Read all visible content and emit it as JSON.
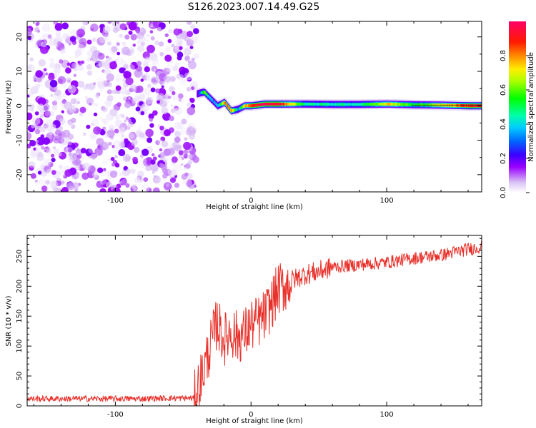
{
  "title": "S126.2023.007.14.49.G25",
  "chart_data": [
    {
      "type": "heatmap",
      "xlabel": "Height of straight line (km)",
      "ylabel": "Frequency (Hz)",
      "xlim": [
        -165,
        170
      ],
      "ylim": [
        -25,
        24.5
      ],
      "xticks": [
        -100,
        0,
        100
      ],
      "yticks": [
        -20,
        -10,
        0,
        10,
        20
      ],
      "colorbar": {
        "label": "Normalized spectral amplitude",
        "range": [
          0,
          1
        ],
        "ticks": [
          0.0,
          0.2,
          0.4,
          0.6,
          0.8
        ]
      },
      "noise_region": {
        "x": [
          -165,
          -40
        ],
        "amplitude_range": [
          0.02,
          0.18
        ]
      },
      "ridge": {
        "x": [
          -40,
          -35,
          -30,
          -25,
          -20,
          -15,
          -10,
          -5,
          0,
          10,
          20,
          40,
          60,
          80,
          100,
          120,
          140,
          160,
          170
        ],
        "freq_hz": [
          3.5,
          4,
          2,
          0,
          1,
          -1.5,
          -1,
          0,
          0,
          0.5,
          0.5,
          0.5,
          0.4,
          0.4,
          0.5,
          0.3,
          0.2,
          0,
          0
        ],
        "peak_amplitude": [
          0.1,
          0.6,
          0.35,
          0.35,
          0.8,
          0.8,
          0.35,
          0.7,
          0.9,
          0.95,
          0.95,
          0.45,
          0.45,
          0.45,
          0.75,
          0.5,
          0.7,
          0.9,
          0.9
        ]
      }
    },
    {
      "type": "line",
      "xlabel": "Height of straight line (km)",
      "ylabel": "SNR (10 * v/v)",
      "xlim": [
        -165,
        170
      ],
      "ylim": [
        0,
        285
      ],
      "xticks": [
        -100,
        0,
        100
      ],
      "yticks": [
        0,
        50,
        100,
        150,
        200,
        250
      ],
      "color": "#e8302a",
      "series": [
        {
          "x": [
            -165,
            -140,
            -110,
            -80,
            -60,
            -42,
            -35,
            -30,
            -25,
            -20,
            -15,
            -10,
            -5,
            0,
            5,
            10,
            15,
            20,
            25,
            30,
            40,
            50,
            60,
            80,
            100,
            120,
            140,
            160,
            170
          ],
          "y": [
            12,
            12,
            12,
            12,
            13,
            13,
            60,
            100,
            140,
            110,
            125,
            115,
            120,
            135,
            140,
            150,
            170,
            195,
            200,
            210,
            220,
            225,
            232,
            236,
            240,
            247,
            252,
            262,
            266
          ]
        }
      ]
    }
  ]
}
